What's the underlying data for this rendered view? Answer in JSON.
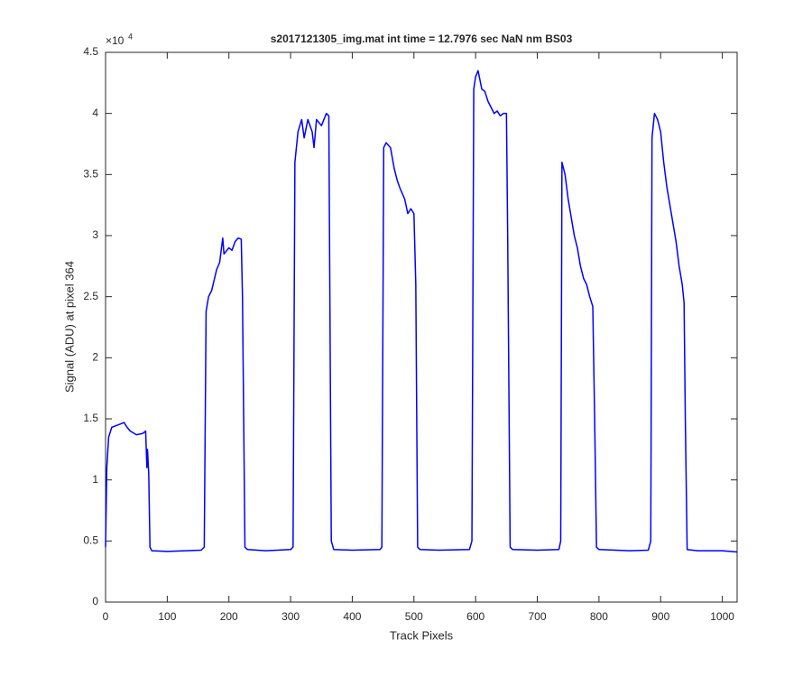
{
  "chart_data": {
    "type": "line",
    "title": "s2017121305_img.mat int time = 12.7976 sec  NaN nm BS03",
    "x_label": "Track Pixels",
    "y_label": "Signal (ADU) at pixel 364",
    "y_multiplier": "×10",
    "y_multiplier_power": "4",
    "color": "#0000ff",
    "x": [
      0,
      2,
      5,
      10,
      20,
      30,
      35,
      40,
      50,
      60,
      65,
      67,
      68,
      70,
      72,
      75,
      100,
      130,
      155,
      160,
      163,
      167,
      172,
      180,
      185,
      190,
      192,
      200,
      205,
      210,
      215,
      220,
      222,
      226,
      230,
      260,
      300,
      304,
      307,
      312,
      318,
      322,
      328,
      335,
      338,
      342,
      350,
      358,
      362,
      366,
      370,
      400,
      445,
      448,
      451,
      455,
      462,
      468,
      473,
      478,
      485,
      490,
      495,
      500,
      503,
      506,
      510,
      540,
      590,
      594,
      597,
      600,
      604,
      610,
      615,
      620,
      625,
      630,
      635,
      640,
      645,
      650,
      652,
      656,
      660,
      700,
      735,
      738,
      740,
      745,
      750,
      755,
      760,
      765,
      770,
      775,
      780,
      785,
      790,
      793,
      796,
      800,
      850,
      880,
      884,
      886,
      890,
      895,
      900,
      905,
      910,
      915,
      920,
      925,
      930,
      935,
      938,
      940,
      943,
      960,
      1000,
      1024
    ],
    "values": [
      0.45,
      1.1,
      1.35,
      1.43,
      1.45,
      1.47,
      1.43,
      1.4,
      1.37,
      1.38,
      1.4,
      1.1,
      1.25,
      1.05,
      0.45,
      0.42,
      0.415,
      0.42,
      0.425,
      0.45,
      2.38,
      2.5,
      2.55,
      2.72,
      2.78,
      2.98,
      2.85,
      2.9,
      2.88,
      2.95,
      2.98,
      2.97,
      2.5,
      0.45,
      0.43,
      0.42,
      0.43,
      0.45,
      3.6,
      3.85,
      3.95,
      3.8,
      3.95,
      3.85,
      3.72,
      3.95,
      3.9,
      4.0,
      3.98,
      0.5,
      0.43,
      0.425,
      0.43,
      0.45,
      3.72,
      3.76,
      3.72,
      3.55,
      3.45,
      3.38,
      3.3,
      3.18,
      3.22,
      3.18,
      2.6,
      0.45,
      0.43,
      0.425,
      0.43,
      0.5,
      4.2,
      4.3,
      4.35,
      4.2,
      4.18,
      4.1,
      4.05,
      4.0,
      4.02,
      3.98,
      4.0,
      4.0,
      3.0,
      0.45,
      0.43,
      0.425,
      0.43,
      0.5,
      3.6,
      3.5,
      3.3,
      3.15,
      3.0,
      2.9,
      2.75,
      2.65,
      2.6,
      2.5,
      2.42,
      1.5,
      0.45,
      0.43,
      0.42,
      0.425,
      0.5,
      3.8,
      4.0,
      3.95,
      3.85,
      3.6,
      3.4,
      3.25,
      3.1,
      2.95,
      2.75,
      2.6,
      2.45,
      1.5,
      0.43,
      0.42,
      0.42,
      0.41
    ],
    "xlim": [
      0,
      1024
    ],
    "xticks": [
      0,
      100,
      200,
      300,
      400,
      500,
      600,
      700,
      800,
      900,
      1000
    ],
    "ylim": [
      0,
      4.5
    ],
    "yticks": [
      0,
      0.5,
      1,
      1.5,
      2,
      2.5,
      3,
      3.5,
      4,
      4.5
    ]
  }
}
